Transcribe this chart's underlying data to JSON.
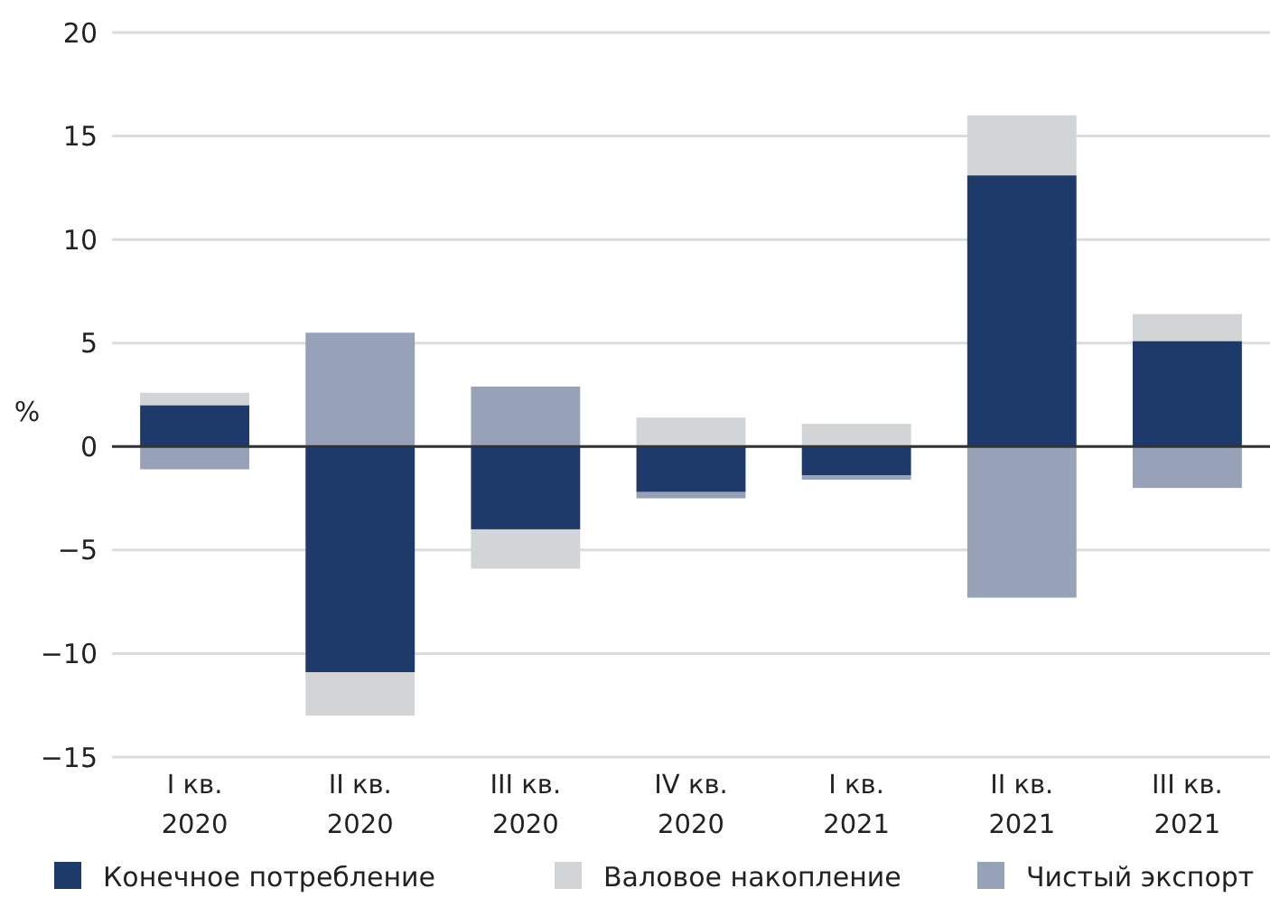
{
  "chart_data": {
    "type": "bar",
    "stacked": true,
    "ylabel": "%",
    "categories": [
      "I кв.\n2020",
      "II кв.\n2020",
      "III кв.\n2020",
      "IV кв.\n2020",
      "I кв.\n2021",
      "II кв.\n2021",
      "III кв.\n2021"
    ],
    "series": [
      {
        "name": "Конечное потребление",
        "color": "#1e3a6b",
        "values": [
          2.0,
          -10.9,
          -4.0,
          -2.2,
          -1.4,
          13.1,
          5.1
        ]
      },
      {
        "name": "Валовое накопление",
        "color": "#d3d4d6",
        "values": [
          0.6,
          -2.1,
          -1.9,
          1.4,
          1.1,
          2.9,
          1.3
        ]
      },
      {
        "name": "Чистый экспорт",
        "color": "#97a1b8",
        "values": [
          -1.1,
          5.5,
          2.9,
          -0.3,
          -0.2,
          -7.3,
          -2.0
        ]
      }
    ],
    "ylim": [
      -15,
      20
    ],
    "yticks": [
      -15,
      -10,
      -5,
      0,
      5,
      10,
      15,
      20
    ],
    "grid": "y",
    "legend": "bottom"
  }
}
